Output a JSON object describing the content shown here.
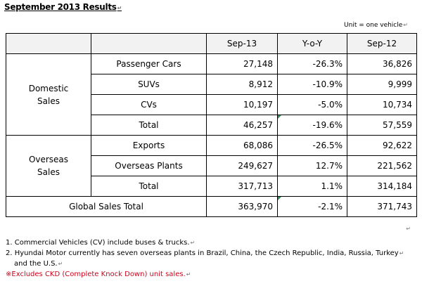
{
  "title": "September 2013 Results",
  "unit": "Unit = one vehicle",
  "table": {
    "headers": [
      "Sep-13",
      "Y-o-Y",
      "Sep-12"
    ],
    "domestic": {
      "label_line1": "Domestic",
      "label_line2": "Sales",
      "rows": [
        {
          "label": "Passenger Cars",
          "sep13": "27,148",
          "yoy": "-26.3%",
          "sep12": "36,826"
        },
        {
          "label": "SUVs",
          "sep13": "8,912",
          "yoy": "-10.9%",
          "sep12": "9,999"
        },
        {
          "label": "CVs",
          "sep13": "10,197",
          "yoy": "-5.0%",
          "sep12": "10,734"
        },
        {
          "label": "Total",
          "sep13": "46,257",
          "yoy": "-19.6%",
          "sep12": "57,559"
        }
      ]
    },
    "overseas": {
      "label_line1": "Overseas",
      "label_line2": "Sales",
      "rows": [
        {
          "label": "Exports",
          "sep13": "68,086",
          "yoy": "-26.5%",
          "sep12": "92,622"
        },
        {
          "label": "Overseas Plants",
          "sep13": "249,627",
          "yoy": "12.7%",
          "sep12": "221,562"
        },
        {
          "label": "Total",
          "sep13": "317,713",
          "yoy": "1.1%",
          "sep12": "314,184"
        }
      ]
    },
    "global": {
      "label": "Global Sales Total",
      "sep13": "363,970",
      "yoy": "-2.1%",
      "sep12": "371,743"
    }
  },
  "notes": {
    "n1": "1. Commercial Vehicles (CV) include buses & trucks.",
    "n2a": "2. Hyundai Motor currently has seven overseas plants in Brazil, China, the Czech Republic, India, Russia, Turkey",
    "n2b": "and the U.S.",
    "n3": "※Excludes CKD (Complete Knock Down) unit sales."
  },
  "colors": {
    "note_red": "#d0021b",
    "header_bg": "#f2f2f2",
    "cell_marker": "#2e8b57"
  }
}
